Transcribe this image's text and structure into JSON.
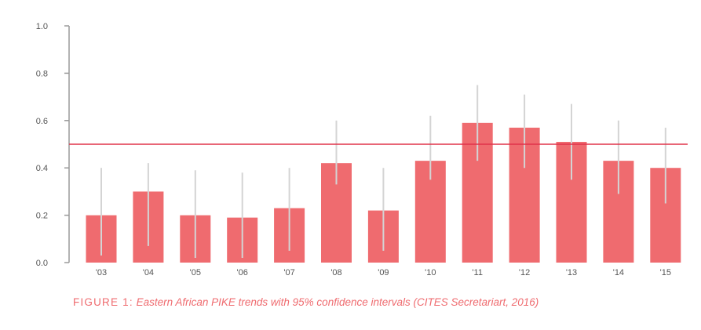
{
  "chart_data": {
    "type": "bar",
    "categories": [
      "'03",
      "'04",
      "'05",
      "'06",
      "'07",
      "'08",
      "'09",
      "'10",
      "'11",
      "'12",
      "'13",
      "'14",
      "'15"
    ],
    "values": [
      0.2,
      0.3,
      0.2,
      0.19,
      0.23,
      0.42,
      0.22,
      0.43,
      0.59,
      0.57,
      0.51,
      0.43,
      0.4
    ],
    "ci_low": [
      0.03,
      0.07,
      0.02,
      0.02,
      0.05,
      0.33,
      0.05,
      0.35,
      0.43,
      0.4,
      0.35,
      0.29,
      0.25
    ],
    "ci_high": [
      0.4,
      0.42,
      0.39,
      0.38,
      0.4,
      0.6,
      0.4,
      0.62,
      0.75,
      0.71,
      0.67,
      0.6,
      0.57
    ],
    "reference_line": 0.5,
    "ylim": [
      0,
      1.0
    ],
    "yticks": [
      "0.0",
      "0.2",
      "0.4",
      "0.6",
      "0.8",
      "1.0"
    ],
    "grid": false,
    "colors": {
      "bar": "#ef6b6f",
      "error_bar": "#d4d4d4",
      "reference_line": "#e0334a",
      "axis": "#9a9a9a",
      "tick_text": "#555555"
    }
  },
  "caption": {
    "label": "FIGURE 1:",
    "text": "Eastern African PIKE trends with 95% confidence intervals (CITES Secretariart, 2016)"
  }
}
